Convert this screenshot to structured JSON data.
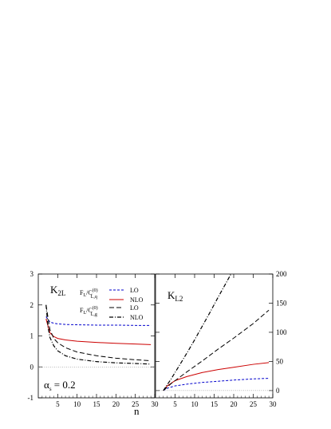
{
  "chart_data": [
    {
      "type": "line",
      "panel_label_main": "K",
      "panel_label_sub": "2L",
      "xlabel": "n",
      "xlim": [
        0,
        30
      ],
      "ylim": [
        -1,
        3
      ],
      "x_ticks": [
        5,
        10,
        15,
        20,
        25,
        30
      ],
      "y_ticks": [
        -1,
        0,
        1,
        2,
        3
      ],
      "y_tick_labels": [
        "-1",
        "0",
        "1",
        "2",
        "3"
      ],
      "x_tick_labels": [
        "5",
        "10",
        "15",
        "20",
        "25",
        "30"
      ],
      "reference_line_y": 0,
      "annotation": {
        "main": "α",
        "sub": "s",
        "rest": " = 0.2"
      },
      "legend": {
        "group_q": {
          "main": "F",
          "sub_L": "L",
          "mid": "/C",
          "sup": "(0)",
          "sub": "L,q"
        },
        "group_g": {
          "main": "F",
          "sub_L": "L",
          "mid": "/C",
          "sup": "(0)",
          "sub": "L,g"
        },
        "entries": [
          "LO",
          "NLO",
          "LO",
          "NLO"
        ]
      },
      "series": [
        {
          "group": "q",
          "order": "LO",
          "color": "#0000cc",
          "dash": "short-dash",
          "points": [
            [
              2,
              1.62
            ],
            [
              3,
              1.45
            ],
            [
              4,
              1.41
            ],
            [
              5,
              1.39
            ],
            [
              7,
              1.37
            ],
            [
              10,
              1.36
            ],
            [
              15,
              1.35
            ],
            [
              20,
              1.35
            ],
            [
              25,
              1.34
            ],
            [
              29,
              1.34
            ]
          ]
        },
        {
          "group": "q",
          "order": "NLO",
          "color": "#cc0000",
          "dash": "solid",
          "points": [
            [
              2,
              1.55
            ],
            [
              3,
              1.1
            ],
            [
              4,
              0.98
            ],
            [
              5,
              0.92
            ],
            [
              7,
              0.87
            ],
            [
              10,
              0.83
            ],
            [
              15,
              0.79
            ],
            [
              20,
              0.76
            ],
            [
              25,
              0.74
            ],
            [
              29,
              0.72
            ]
          ]
        },
        {
          "group": "g",
          "order": "LO",
          "color": "#000000",
          "dash": "long-dash",
          "points": [
            [
              2,
              2.0
            ],
            [
              3,
              1.2
            ],
            [
              4,
              0.92
            ],
            [
              5,
              0.78
            ],
            [
              7,
              0.62
            ],
            [
              10,
              0.48
            ],
            [
              15,
              0.36
            ],
            [
              20,
              0.28
            ],
            [
              25,
              0.23
            ],
            [
              29,
              0.2
            ]
          ]
        },
        {
          "group": "g",
          "order": "NLO",
          "color": "#000000",
          "dash": "dash-dot",
          "points": [
            [
              2,
              2.0
            ],
            [
              2.5,
              1.3
            ],
            [
              3,
              0.95
            ],
            [
              4,
              0.68
            ],
            [
              5,
              0.52
            ],
            [
              7,
              0.36
            ],
            [
              10,
              0.25
            ],
            [
              15,
              0.17
            ],
            [
              20,
              0.13
            ],
            [
              25,
              0.11
            ],
            [
              29,
              0.09
            ]
          ]
        }
      ]
    },
    {
      "type": "line",
      "panel_label_main": "K",
      "panel_label_sub": "L2",
      "xlabel": "",
      "xlim": [
        0,
        30
      ],
      "ylim": [
        -12.5,
        200
      ],
      "x_ticks": [
        5,
        10,
        15,
        20,
        25,
        30
      ],
      "x_tick_labels": [
        "5",
        "10",
        "15",
        "20",
        "25",
        "30"
      ],
      "y_ticks": [
        0,
        50,
        100,
        150,
        200
      ],
      "y_tick_labels": [
        "0",
        "50",
        "100",
        "150",
        "200"
      ],
      "y_axis_side": "right",
      "reference_line_y": 0,
      "series": [
        {
          "group": "q",
          "order": "LO",
          "color": "#0000cc",
          "dash": "short-dash",
          "points": [
            [
              2,
              0
            ],
            [
              3,
              4
            ],
            [
              5,
              8
            ],
            [
              8,
              11
            ],
            [
              12,
              14
            ],
            [
              16,
              16
            ],
            [
              20,
              18
            ],
            [
              25,
              20
            ],
            [
              29,
              21
            ]
          ]
        },
        {
          "group": "q",
          "order": "NLO",
          "color": "#cc0000",
          "dash": "solid",
          "points": [
            [
              2,
              0
            ],
            [
              3,
              8
            ],
            [
              5,
              17
            ],
            [
              8,
              24
            ],
            [
              12,
              31
            ],
            [
              16,
              36
            ],
            [
              20,
              40
            ],
            [
              25,
              45
            ],
            [
              29,
              48
            ]
          ]
        },
        {
          "group": "g",
          "order": "LO",
          "color": "#000000",
          "dash": "long-dash",
          "points": [
            [
              2,
              0
            ],
            [
              4,
              12
            ],
            [
              6,
              22
            ],
            [
              8,
              32
            ],
            [
              12,
              51
            ],
            [
              16,
              71
            ],
            [
              20,
              90
            ],
            [
              25,
              115
            ],
            [
              29,
              138
            ]
          ]
        },
        {
          "group": "g",
          "order": "NLO",
          "color": "#000000",
          "dash": "dash-dot",
          "points": [
            [
              2,
              0
            ],
            [
              4,
              20
            ],
            [
              6,
              42
            ],
            [
              8,
              64
            ],
            [
              10,
              87
            ],
            [
              12,
              111
            ],
            [
              14,
              135
            ],
            [
              16,
              160
            ],
            [
              18,
              184
            ],
            [
              19.3,
              200
            ]
          ]
        }
      ]
    }
  ]
}
